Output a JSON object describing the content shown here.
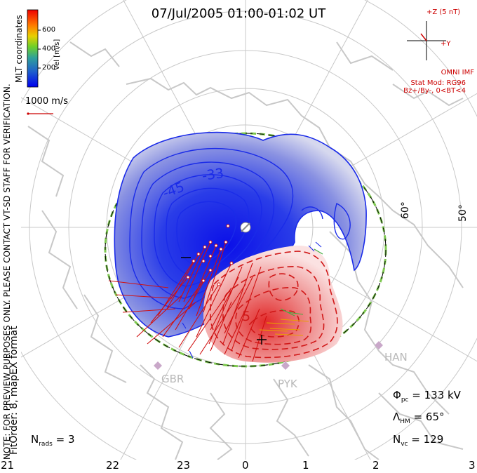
{
  "title": "07/Jul/2005  01:00-01:02  UT",
  "side_notes": {
    "coordinates": "MLT coordinates",
    "preview_note": "NOTE: FOR PREVIEW PURPOSES ONLY. PLEASE CONTACT VT-SD STAFF FOR VERIFICATION.",
    "fit_order": "FitOrder: 8, mapEX format"
  },
  "color_scale": {
    "label": "Vel [m/s]",
    "ticks": [
      "200",
      "400",
      "600"
    ],
    "colors": [
      "#0000ee",
      "#1e5fcc",
      "#2fa19a",
      "#6ccf2a",
      "#e8cf00",
      "#ff7a00",
      "#ff2a00",
      "#ee0000"
    ]
  },
  "reference_vector": {
    "label": "1000 m/s",
    "color": "#cc0000"
  },
  "imf": {
    "scale": "+Z (5 nT)",
    "y_label": "+Y",
    "source": "OMNI IMF",
    "stat_model": "Stat Mod: RG96",
    "condition": "Bz+/By-, 0<BT<4",
    "color": "#cc0000"
  },
  "latitude_labels": [
    "60°",
    "50°"
  ],
  "mlt_labels": [
    "21",
    "22",
    "23",
    "0",
    "1",
    "2",
    "3"
  ],
  "contour_labels": [
    "-33",
    "-45",
    "5"
  ],
  "stations": [
    "GBR",
    "PYK",
    "HAN"
  ],
  "stats": {
    "phi_pc": "= 133 kV",
    "lambda_hm": "= 65°",
    "n_vc": "= 129",
    "n_rads": "= 3"
  },
  "colors": {
    "negative_cell": "#1a2be8",
    "positive_cell": "#e23030",
    "coastline": "#c8c8c8",
    "grid": "#c8c8c8",
    "vectors": "#d01010",
    "boundary": "#7ec850"
  }
}
